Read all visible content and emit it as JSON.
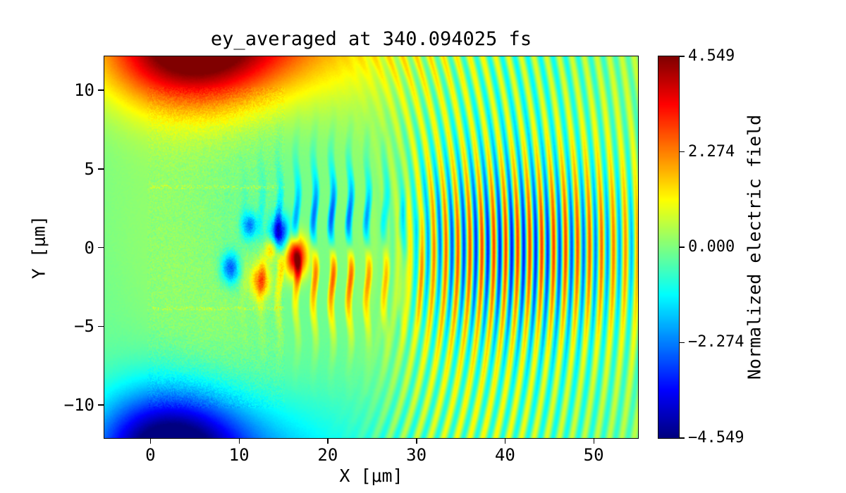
{
  "figure": {
    "background_color": "#ffffff",
    "frame_color": "#000000"
  },
  "chart_data": {
    "type": "heatmap",
    "title": "ey_averaged at 340.094025 fs",
    "xlabel": "X [μm]",
    "ylabel": "Y [μm]",
    "x_range": [
      -5.2,
      55.0
    ],
    "y_range": [
      -12.1,
      12.15
    ],
    "x_ticks": [
      0,
      10,
      20,
      30,
      40,
      50
    ],
    "y_ticks": [
      -10,
      -5,
      0,
      5,
      10
    ],
    "grid": false,
    "colormap": "jet",
    "colorbar": {
      "label": "Normalized electric field",
      "vmin": -4.549,
      "vmax": 4.549,
      "ticks": [
        4.549,
        2.274,
        0.0,
        -2.274,
        -4.549
      ],
      "tick_decimals": 3
    },
    "field_model": {
      "background_ripple": 0.15,
      "global_speckle": 0.1,
      "corner_blobs": [
        {
          "x": 4.0,
          "y": 12.9,
          "sx": 7.0,
          "sy": 2.7,
          "amp": 5.0
        },
        {
          "x": 17.0,
          "y": 14.0,
          "sx": 9.0,
          "sy": 3.2,
          "amp": 2.0
        },
        {
          "x": 2.0,
          "y": -13.0,
          "sx": 6.0,
          "sy": 2.7,
          "amp": -5.0
        },
        {
          "x": 13.0,
          "y": -14.0,
          "sx": 8.0,
          "sy": 3.2,
          "amp": -1.6
        }
      ],
      "target_block": {
        "x0": -0.3,
        "x1": 15.2,
        "y0": -10.2,
        "y1": 10.2,
        "speckle": 0.26,
        "dot_rows": [
          3.85,
          -3.85
        ],
        "dot_amp": 0.9
      },
      "spots": [
        {
          "x": 16.4,
          "y": -0.6,
          "s": 0.9,
          "amp": 4.2
        },
        {
          "x": 14.6,
          "y": 0.9,
          "s": 0.8,
          "amp": -3.2
        },
        {
          "x": 9.0,
          "y": -1.3,
          "s": 0.7,
          "amp": -2.6
        },
        {
          "x": 12.4,
          "y": -2.1,
          "s": 0.8,
          "amp": 2.4
        },
        {
          "x": 11.2,
          "y": 1.4,
          "s": 0.6,
          "amp": -2.2
        },
        {
          "x": 13.6,
          "y": -0.1,
          "s": 0.5,
          "amp": 2.0
        }
      ],
      "stripe_region": {
        "cx": 21.0,
        "sx": 5.0,
        "sy": 3.2,
        "wavelength": 2.0,
        "amp": 3.8
      },
      "arcs": {
        "cx": 6.0,
        "cy": 0.0,
        "y_scale": 1.08,
        "wavelength": 1.35,
        "r_on": 23.0,
        "r_peak": 35.0,
        "r_sigma": 13.5,
        "amp": 1.05,
        "axis_boost": 1.9,
        "axis_sigma": 3.8
      }
    }
  }
}
